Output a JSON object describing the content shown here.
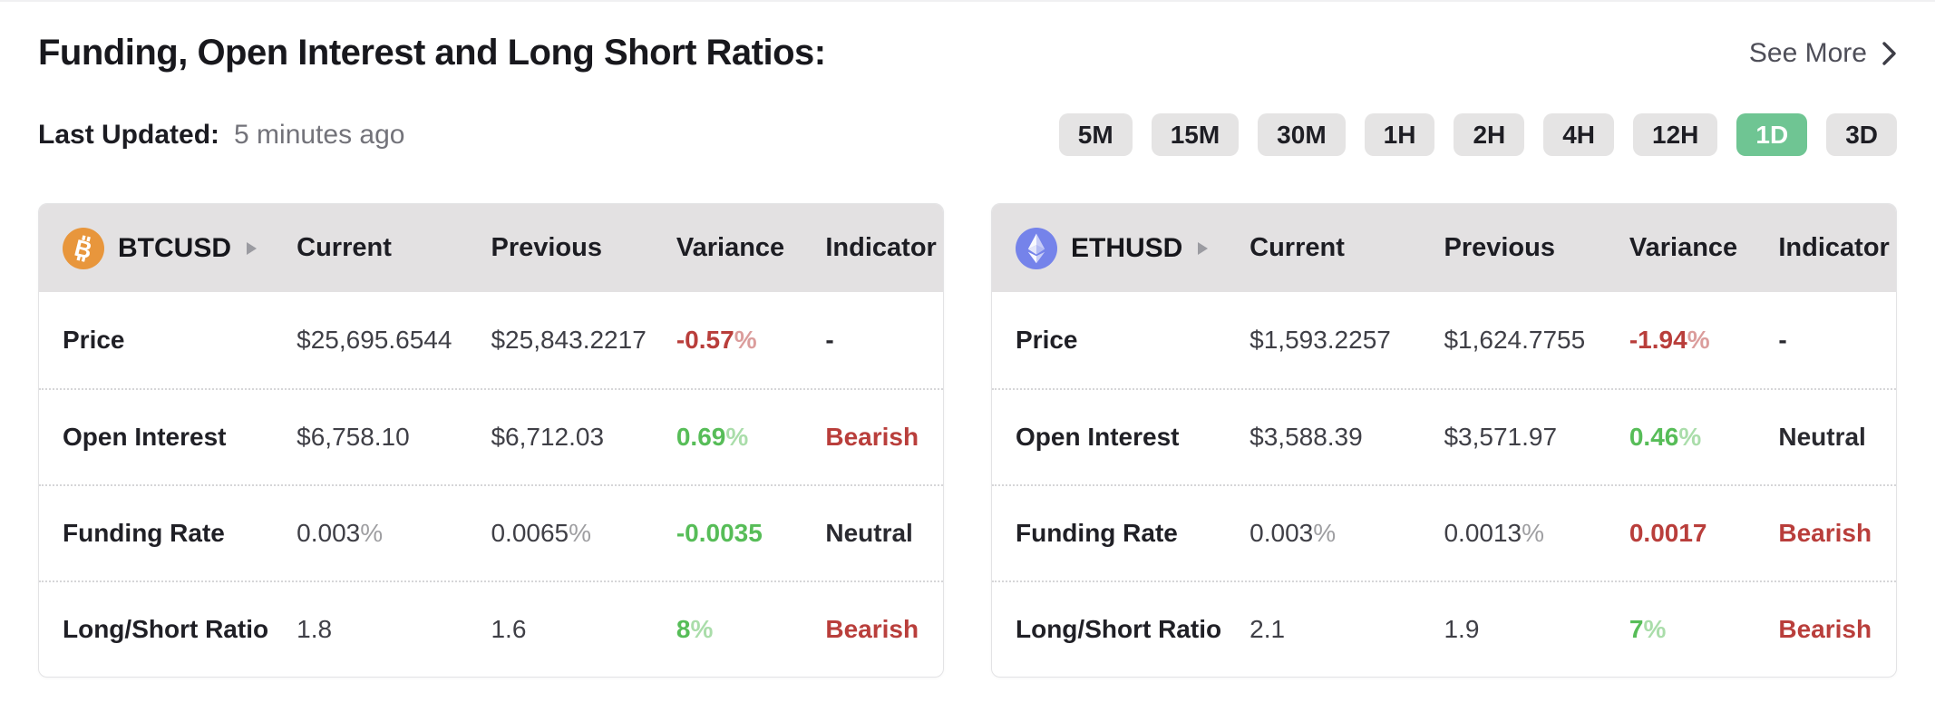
{
  "page": {
    "title": "Funding, Open Interest and Long Short Ratios:",
    "see_more_label": "See More",
    "last_updated_label": "Last Updated:",
    "last_updated_value": "5 minutes ago"
  },
  "timeframes": {
    "options": [
      "5M",
      "15M",
      "30M",
      "1H",
      "2H",
      "4H",
      "12H",
      "1D",
      "3D"
    ],
    "active": "1D"
  },
  "columns": [
    "Current",
    "Previous",
    "Variance",
    "Indicator"
  ],
  "colors": {
    "positive_green": "#57bd58",
    "negative_red": "#b93e3b",
    "active_timeframe": "#6fc593",
    "bitcoin_orange": "#e8963c",
    "ethereum_blue": "#7583ea"
  },
  "tables": [
    {
      "symbol": "BTCUSD",
      "icon": "bitcoin-icon",
      "rows": [
        {
          "label": "Price",
          "current": "$25,695.6544",
          "previous": "$25,843.2217",
          "variance": "-0.57%",
          "variance_color": "red",
          "indicator": "-",
          "indicator_color": "dark"
        },
        {
          "label": "Open Interest",
          "current": "$6,758.10",
          "previous": "$6,712.03",
          "variance": "0.69%",
          "variance_color": "green",
          "indicator": "Bearish",
          "indicator_color": "red"
        },
        {
          "label": "Funding Rate",
          "current": "0.003%",
          "previous": "0.0065%",
          "variance": "-0.0035",
          "variance_color": "green",
          "indicator": "Neutral",
          "indicator_color": "dark"
        },
        {
          "label": "Long/Short Ratio",
          "current": "1.8",
          "previous": "1.6",
          "variance": "8%",
          "variance_color": "green",
          "indicator": "Bearish",
          "indicator_color": "red"
        }
      ]
    },
    {
      "symbol": "ETHUSD",
      "icon": "ethereum-icon",
      "rows": [
        {
          "label": "Price",
          "current": "$1,593.2257",
          "previous": "$1,624.7755",
          "variance": "-1.94%",
          "variance_color": "red",
          "indicator": "-",
          "indicator_color": "dark"
        },
        {
          "label": "Open Interest",
          "current": "$3,588.39",
          "previous": "$3,571.97",
          "variance": "0.46%",
          "variance_color": "green",
          "indicator": "Neutral",
          "indicator_color": "dark"
        },
        {
          "label": "Funding Rate",
          "current": "0.003%",
          "previous": "0.0013%",
          "variance": "0.0017",
          "variance_color": "red",
          "indicator": "Bearish",
          "indicator_color": "red"
        },
        {
          "label": "Long/Short Ratio",
          "current": "2.1",
          "previous": "1.9",
          "variance": "7%",
          "variance_color": "green",
          "indicator": "Bearish",
          "indicator_color": "red"
        }
      ]
    }
  ]
}
